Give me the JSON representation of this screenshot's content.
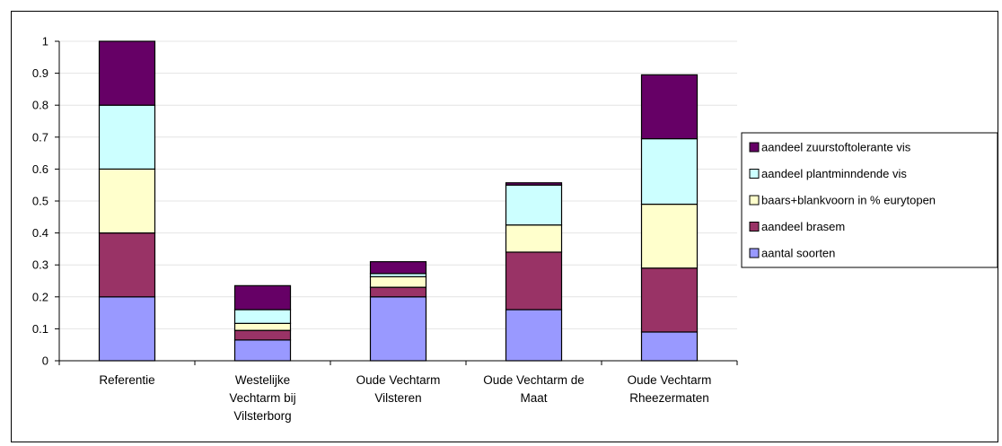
{
  "chart_data": {
    "type": "bar",
    "stacked": true,
    "categories": [
      [
        "Referentie"
      ],
      [
        "Westelijke",
        "Vechtarm bij",
        "Vilsterborg"
      ],
      [
        "Oude Vechtarm",
        "Vilsteren"
      ],
      [
        "Oude Vechtarm de",
        "Maat"
      ],
      [
        "Oude Vechtarm",
        "Rheezermaten"
      ]
    ],
    "series": [
      {
        "name": "aantal soorten",
        "color": "#9999ff",
        "values": [
          0.2,
          0.065,
          0.2,
          0.16,
          0.09
        ]
      },
      {
        "name": "aandeel brasem",
        "color": "#993366",
        "values": [
          0.2,
          0.03,
          0.03,
          0.18,
          0.2
        ]
      },
      {
        "name": "baars+blankvoorn in % eurytopen",
        "color": "#ffffcc",
        "values": [
          0.2,
          0.022,
          0.033,
          0.085,
          0.2
        ]
      },
      {
        "name": "aandeel plantminndende vis",
        "color": "#ccffff",
        "values": [
          0.2,
          0.043,
          0.01,
          0.125,
          0.205
        ]
      },
      {
        "name": "aandeel zuurstoftolerante vis",
        "color": "#660066",
        "values": [
          0.2,
          0.075,
          0.037,
          0.007,
          0.2
        ]
      }
    ],
    "y_ticks": [
      "0",
      "0.1",
      "0.2",
      "0.3",
      "0.4",
      "0.5",
      "0.6",
      "0.7",
      "0.8",
      "0.9",
      "1"
    ],
    "ylim": [
      0,
      1
    ],
    "grid": true,
    "legend_position": "right",
    "legend_order": [
      4,
      3,
      2,
      1,
      0
    ]
  }
}
